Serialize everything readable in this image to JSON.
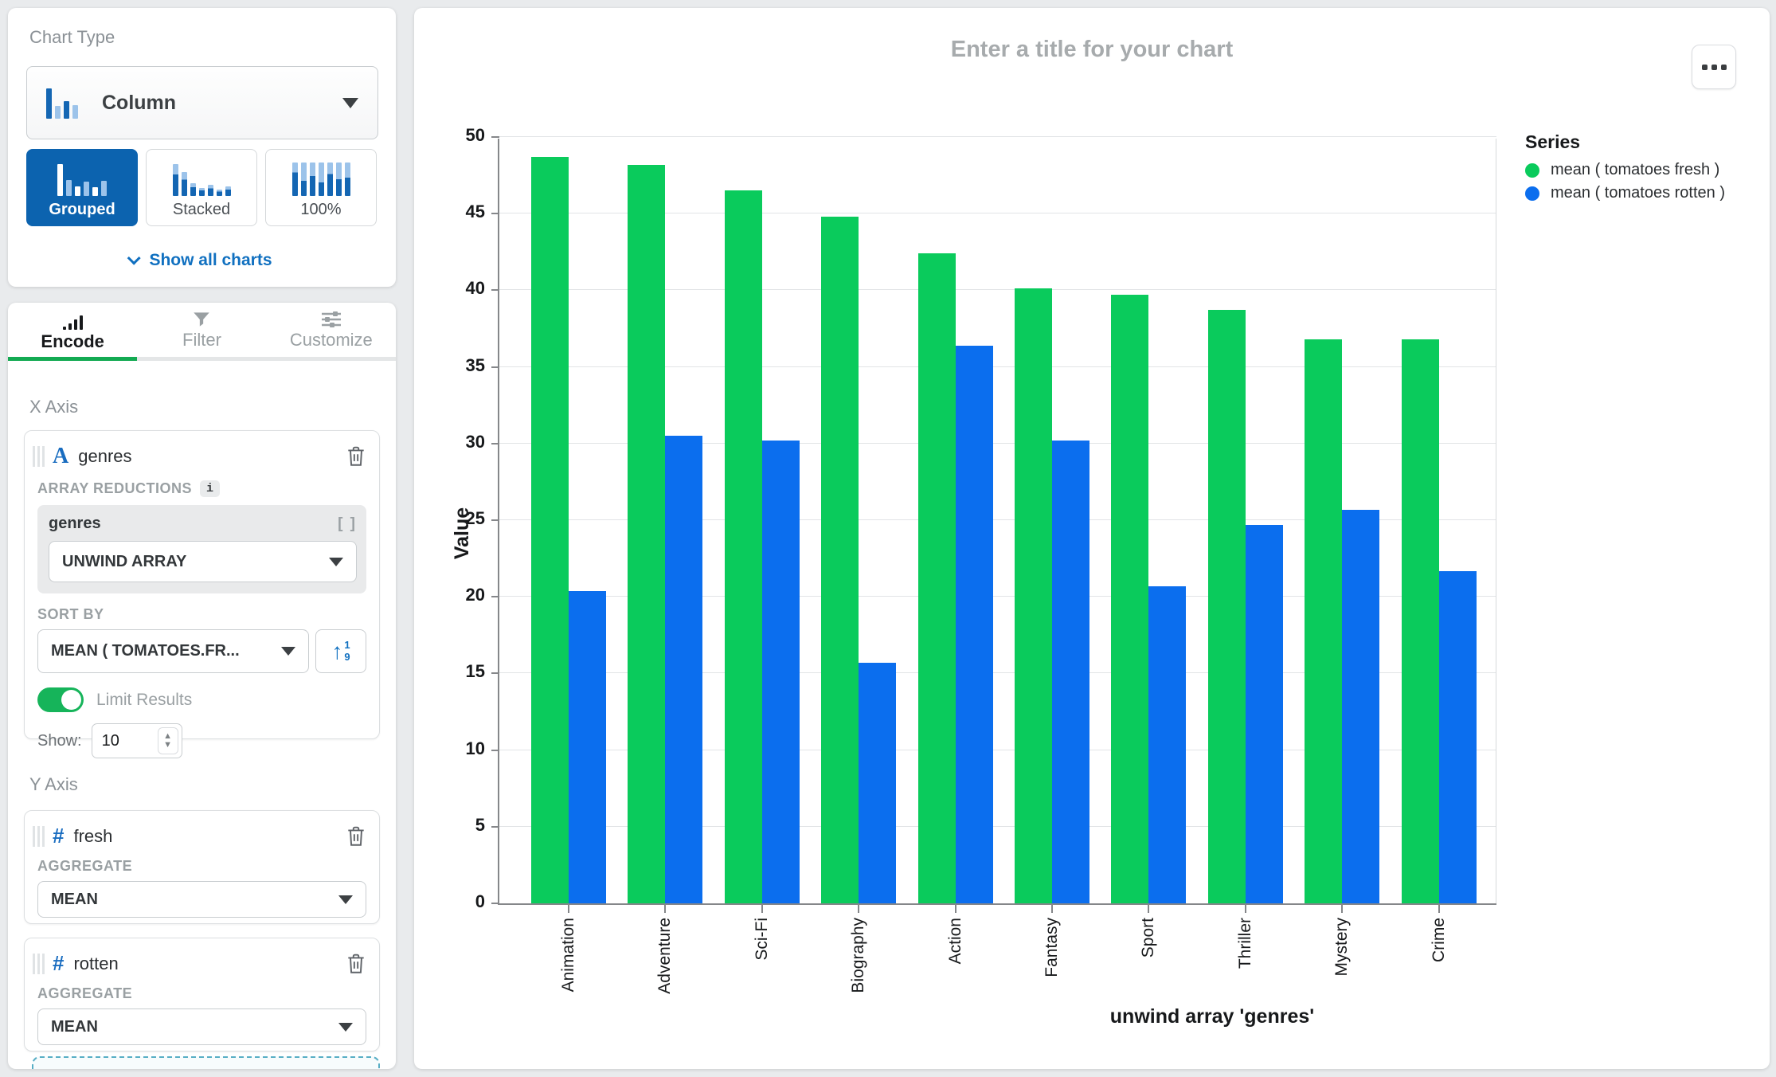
{
  "sidebar": {
    "chart_type": {
      "label": "Chart Type",
      "selected": "Column",
      "variants": [
        {
          "label": "Grouped"
        },
        {
          "label": "Stacked"
        },
        {
          "label": "100%"
        }
      ],
      "show_all_label": "Show all charts"
    },
    "tabs": [
      {
        "label": "Encode"
      },
      {
        "label": "Filter"
      },
      {
        "label": "Customize"
      }
    ],
    "x_axis": {
      "section_label": "X Axis",
      "field_name": "genres",
      "array_reductions_label": "ARRAY REDUCTIONS",
      "info_badge": "i",
      "reduction_field": "genres",
      "reduction_brackets": "[ ]",
      "reduction_value": "UNWIND ARRAY",
      "sort_by_label": "SORT BY",
      "sort_by_value": "MEAN ( TOMATOES.FR...",
      "sort_dir_digits_top": "1",
      "sort_dir_digits_bottom": "9",
      "limit_results_label": "Limit Results",
      "limit_results_on": true,
      "show_label": "Show:",
      "show_value": "10"
    },
    "y_axis": {
      "section_label": "Y Axis",
      "fields": [
        {
          "name": "fresh",
          "aggregate_label": "AGGREGATE",
          "aggregate_value": "MEAN"
        },
        {
          "name": "rotten",
          "aggregate_label": "AGGREGATE",
          "aggregate_value": "MEAN"
        }
      ]
    }
  },
  "chart": {
    "title_placeholder": "Enter a title for your chart",
    "legend_title": "Series"
  },
  "colors": {
    "series_green": "#0acb5c",
    "series_blue": "#0b6eee",
    "selected_button_blue": "#0c63af",
    "active_tab_green": "#13aa52",
    "toggle_green": "#16b45a",
    "link_blue": "#1070c0"
  },
  "chart_data": {
    "type": "bar",
    "mode": "grouped",
    "title": "",
    "categories": [
      "Animation",
      "Adventure",
      "Sci-Fi",
      "Biography",
      "Action",
      "Fantasy",
      "Sport",
      "Thriller",
      "Mystery",
      "Crime"
    ],
    "series": [
      {
        "name": "mean ( tomatoes fresh )",
        "color": "#0acb5c",
        "values": [
          48.7,
          48.2,
          46.5,
          44.8,
          42.4,
          40.1,
          39.7,
          38.7,
          36.8,
          36.8
        ]
      },
      {
        "name": "mean ( tomatoes rotten )",
        "color": "#0b6eee",
        "values": [
          20.4,
          30.5,
          30.2,
          15.7,
          36.4,
          30.2,
          20.7,
          24.7,
          25.7,
          21.7
        ]
      }
    ],
    "xlabel": "unwind array 'genres'",
    "ylabel": "Value",
    "ylim": [
      0,
      50
    ],
    "ytick_step": 5,
    "grid": true,
    "legend_position": "right"
  }
}
